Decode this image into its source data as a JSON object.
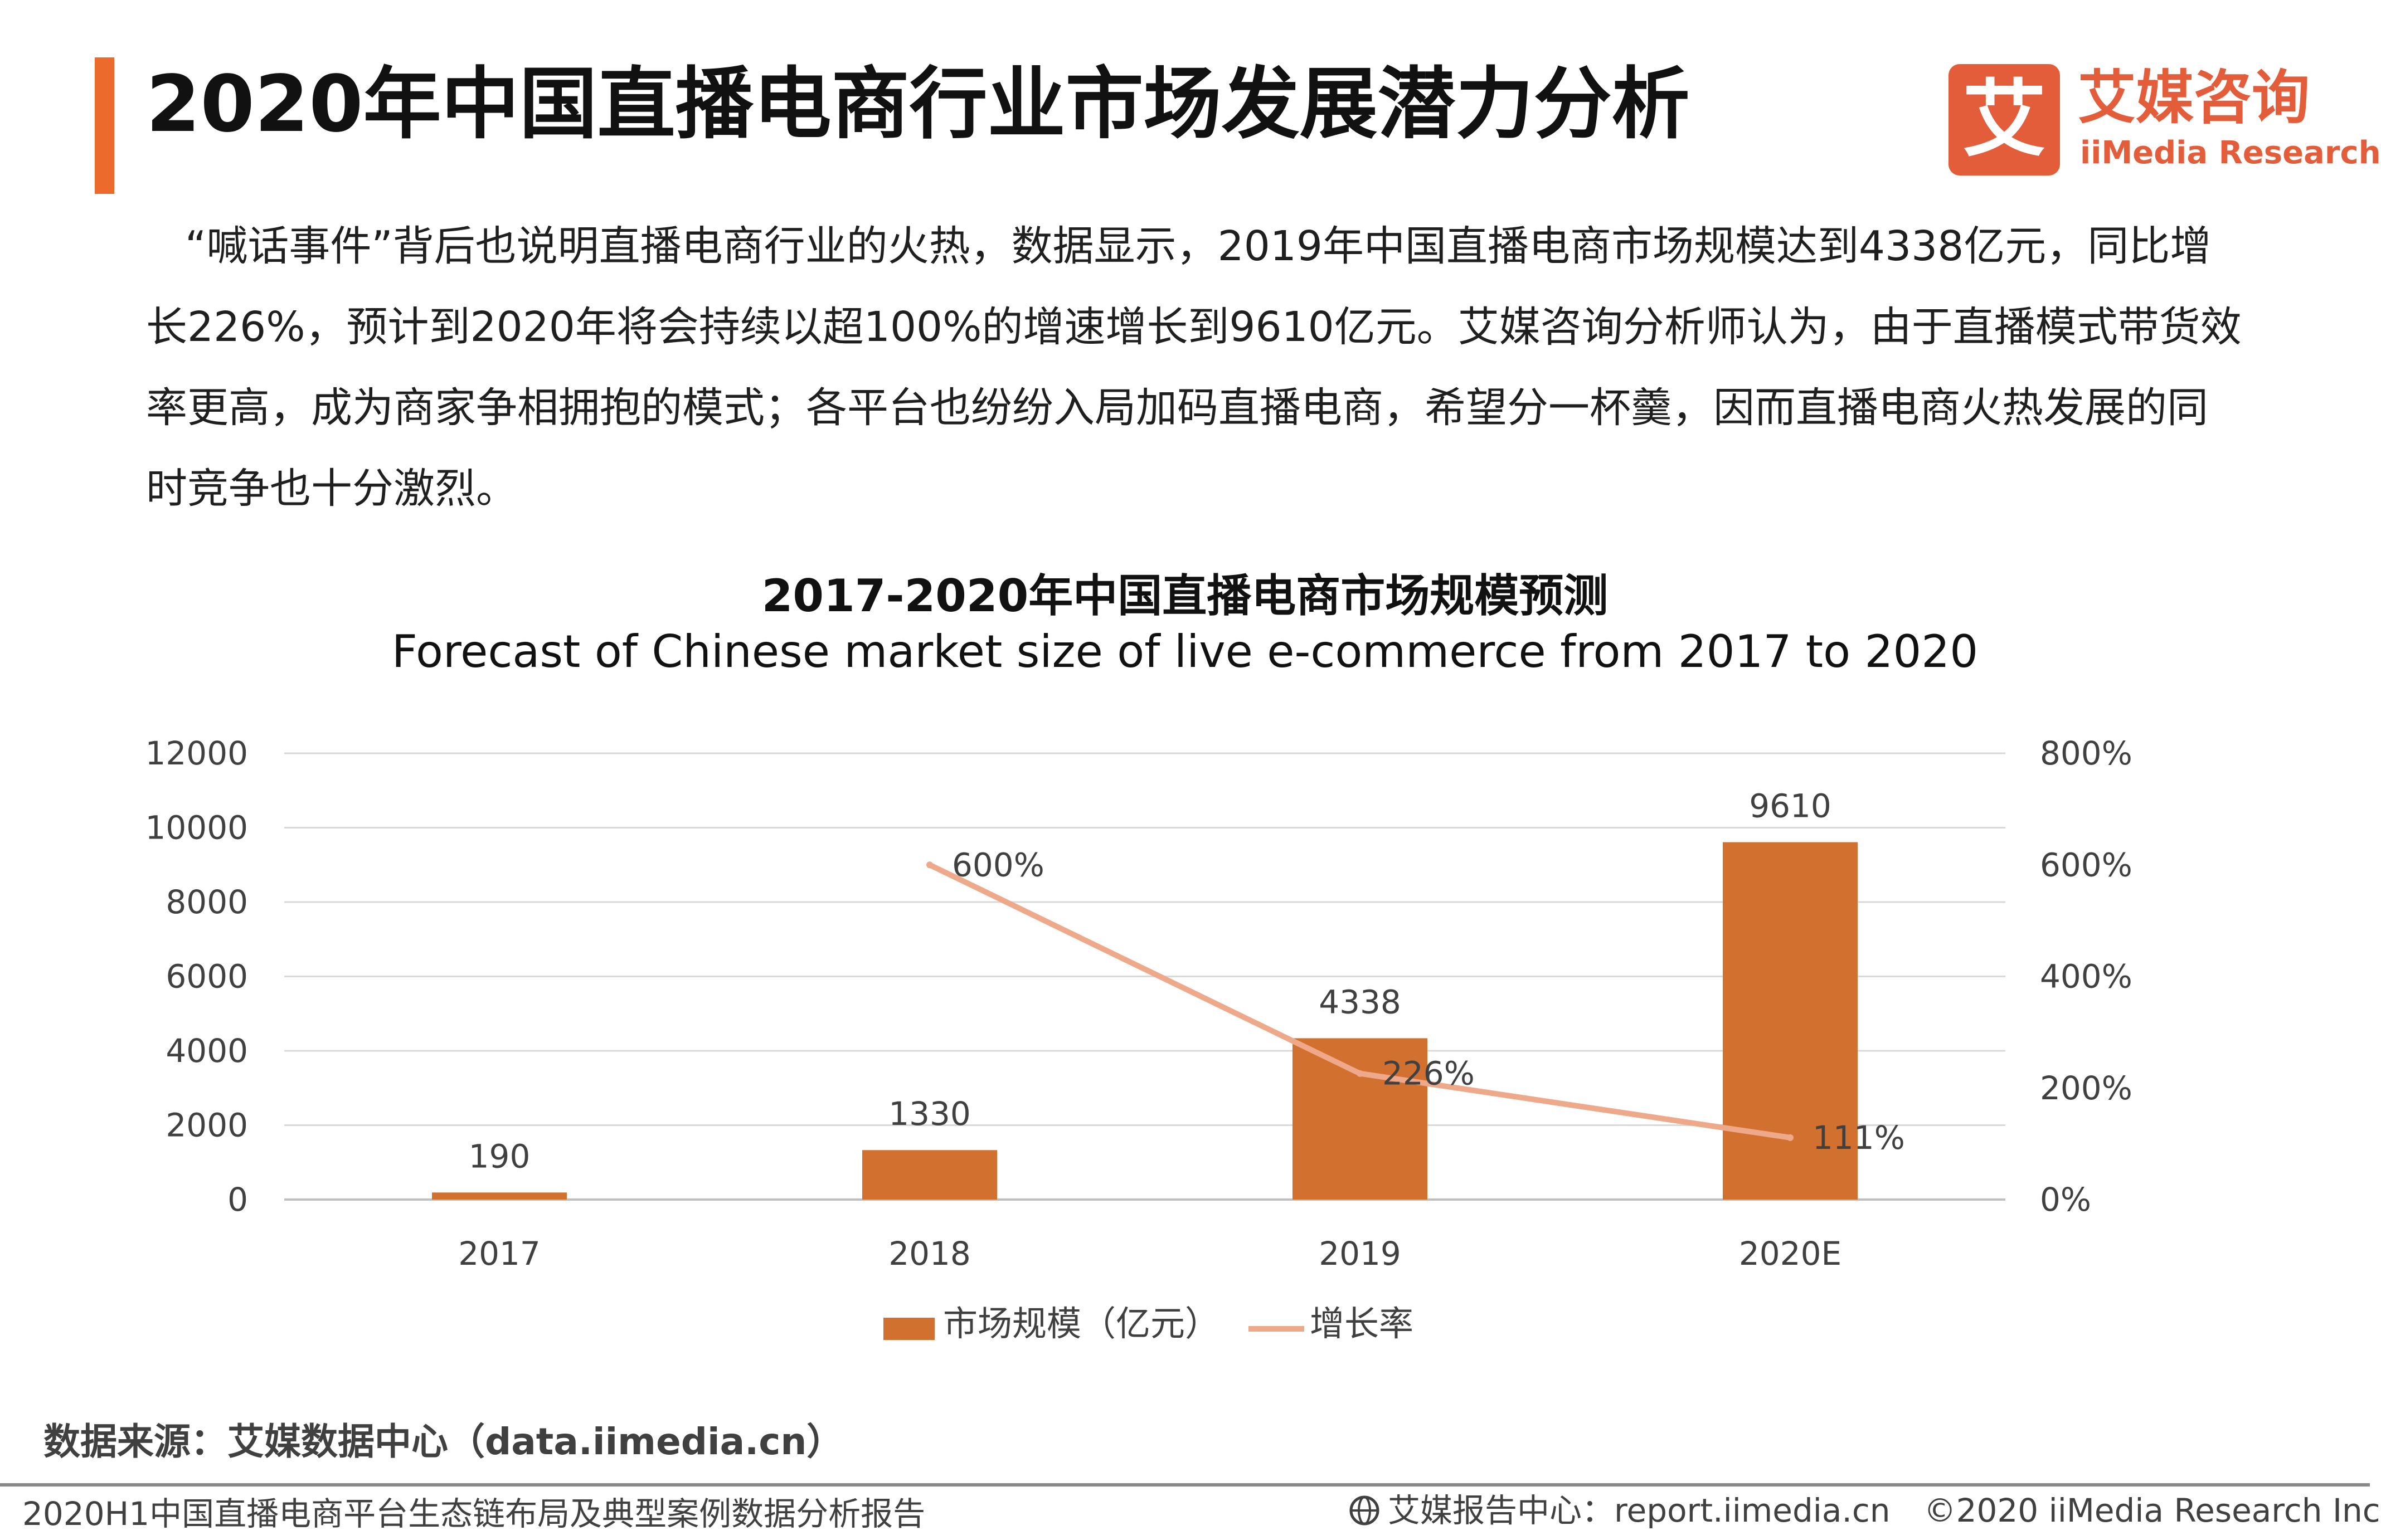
{
  "title": "2020年中国直播电商行业市场发展潜力分析",
  "logo": {
    "mark": "艾",
    "cn": "艾媒咨询",
    "en": "iiMedia Research"
  },
  "intro": "“喊话事件”背后也说明直播电商行业的火热，数据显示，2019年中国直播电商市场规模达到4338亿元，同比增长226%，预计到2020年将会持续以超100%的增速增长到9610亿元。艾媒咨询分析师认为，由于直播模式带货效率更高，成为商家争相拥抱的模式；各平台也纷纷入局加码直播电商，希望分一杯羹，因而直播电商火热发展的同时竞争也十分激烈。",
  "chart_data": {
    "type": "bar",
    "title": "2017-2020年中国直播电商市场规模预测",
    "subtitle": "Forecast of Chinese market size of live e-commerce from 2017 to 2020",
    "categories": [
      "2017",
      "2018",
      "2019",
      "2020E"
    ],
    "series": [
      {
        "name": "市场规模（亿元）",
        "kind": "bar",
        "axis": "left",
        "values": [
          190,
          1330,
          4338,
          9610
        ],
        "labels": [
          "190",
          "1330",
          "4338",
          "9610"
        ],
        "color": "#d2702f"
      },
      {
        "name": "增长率",
        "kind": "line",
        "axis": "right",
        "values": [
          null,
          600,
          226,
          111
        ],
        "labels": [
          null,
          "600%",
          "226%",
          "111%"
        ],
        "color": "#eea88a"
      }
    ],
    "y_left": {
      "min": 0,
      "max": 12000,
      "ticks": [
        "0",
        "2000",
        "4000",
        "6000",
        "8000",
        "10000",
        "12000"
      ]
    },
    "y_right": {
      "min": 0,
      "max": 800,
      "ticks": [
        "0%",
        "200%",
        "400%",
        "600%",
        "800%"
      ]
    },
    "grid": true,
    "legend_position": "bottom"
  },
  "source": "数据来源：艾媒数据中心（data.iimedia.cn）",
  "footer": {
    "report": "2020H1中国直播电商平台生态链布局及典型案例数据分析报告",
    "site": "艾媒报告中心：report.iimedia.cn",
    "copyright": "©2020  iiMedia Research  Inc",
    "icon": "globe-icon"
  }
}
